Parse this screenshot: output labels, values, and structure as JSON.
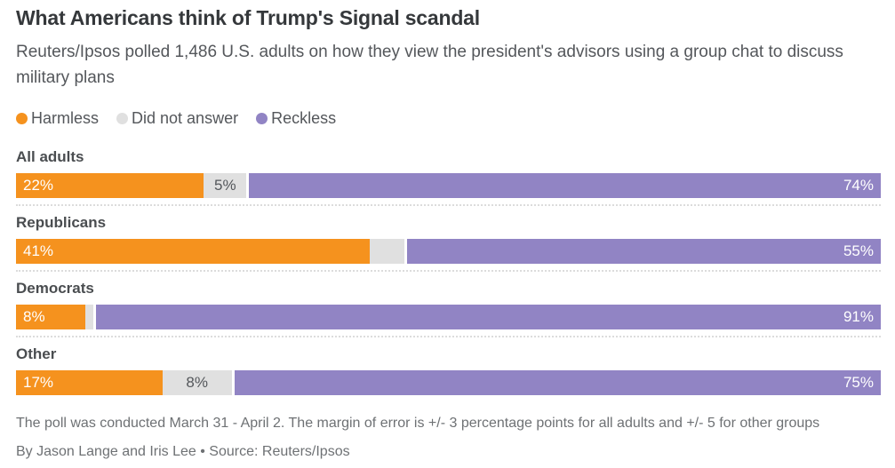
{
  "header": {
    "title": "What Americans think of Trump's Signal scandal",
    "subtitle": "Reuters/Ipsos polled 1,486 U.S. adults on how they view the president's advisors using a group chat to discuss military plans"
  },
  "legend": [
    {
      "label": "Harmless",
      "color": "#F5921E"
    },
    {
      "label": "Did not answer",
      "color": "#E0E0E0"
    },
    {
      "label": "Reckless",
      "color": "#9184C4"
    }
  ],
  "chart_data": {
    "type": "bar",
    "orientation": "horizontal",
    "stacked": true,
    "unit": "percent",
    "xlim": [
      0,
      100
    ],
    "categories": [
      "All adults",
      "Republicans",
      "Democrats",
      "Other"
    ],
    "series": [
      {
        "name": "Harmless",
        "color": "#F5921E",
        "values": [
          22,
          41,
          8,
          17
        ]
      },
      {
        "name": "Did not answer",
        "color": "#E0E0E0",
        "values": [
          5,
          4,
          1,
          8
        ]
      },
      {
        "name": "Reckless",
        "color": "#9184C4",
        "values": [
          74,
          55,
          91,
          75
        ]
      }
    ],
    "data_labels": [
      [
        "22%",
        "5%",
        "74%"
      ],
      [
        "41%",
        "",
        "55%"
      ],
      [
        "8%",
        "",
        "91%"
      ],
      [
        "17%",
        "8%",
        "75%"
      ]
    ]
  },
  "footer": {
    "note": "The poll was conducted March 31 - April 2. The margin of error is +/- 3 percentage points for all adults and +/- 5 for other groups",
    "byline": "By Jason Lange and Iris Lee • Source: Reuters/Ipsos"
  }
}
